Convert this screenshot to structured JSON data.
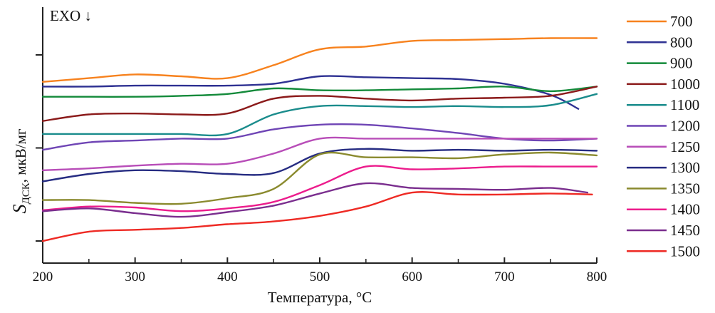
{
  "chart_data": {
    "type": "line",
    "title": "",
    "annotation": "EXO ↓",
    "xlabel": "Температура, °C",
    "ylabel_main": "S",
    "ylabel_sub": "ДСК",
    "ylabel_unit": ", мкВ/мг",
    "xlim": [
      200,
      800
    ],
    "ylim": [
      -0.24,
      2.55
    ],
    "x_ticks": [
      200,
      300,
      400,
      500,
      600,
      700,
      800
    ],
    "x_tick_labels": [
      "200",
      "300",
      "400",
      "500",
      "600",
      "700",
      "800"
    ],
    "x_minor_ticks": [
      250,
      350,
      450,
      550,
      650,
      750
    ],
    "y_ticks": [
      0,
      1,
      2
    ],
    "y_tick_labels": [
      "",
      "",
      ""
    ],
    "y_units_note": "arbitrary units (no numeric y tick labels shown)",
    "grid": false,
    "legend_position": "right",
    "x": [
      200,
      250,
      300,
      350,
      400,
      450,
      500,
      550,
      600,
      650,
      700,
      750,
      800
    ],
    "series": [
      {
        "name": "700",
        "color": "#F7821E",
        "values": [
          1.71,
          1.75,
          1.79,
          1.77,
          1.75,
          1.89,
          2.06,
          2.09,
          2.15,
          2.16,
          2.17,
          2.18,
          2.18
        ]
      },
      {
        "name": "800",
        "color": "#2E3192",
        "values": [
          1.66,
          1.66,
          1.67,
          1.67,
          1.67,
          1.69,
          1.77,
          1.76,
          1.75,
          1.74,
          1.69,
          1.57,
          1.42
        ],
        "x_end": 780
      },
      {
        "name": "900",
        "color": "#138A3A",
        "values": [
          1.55,
          1.55,
          1.55,
          1.56,
          1.58,
          1.64,
          1.62,
          1.62,
          1.63,
          1.64,
          1.66,
          1.61,
          1.66
        ]
      },
      {
        "name": "1000",
        "color": "#8B1A1A",
        "values": [
          1.29,
          1.36,
          1.37,
          1.36,
          1.37,
          1.53,
          1.56,
          1.53,
          1.51,
          1.53,
          1.54,
          1.56,
          1.66
        ]
      },
      {
        "name": "1100",
        "color": "#1A8C8C",
        "values": [
          1.15,
          1.15,
          1.15,
          1.15,
          1.15,
          1.36,
          1.45,
          1.45,
          1.44,
          1.45,
          1.44,
          1.46,
          1.58
        ]
      },
      {
        "name": "1200",
        "color": "#6F45B5",
        "values": [
          0.98,
          1.06,
          1.08,
          1.1,
          1.1,
          1.2,
          1.25,
          1.25,
          1.21,
          1.16,
          1.1,
          1.08,
          1.1
        ]
      },
      {
        "name": "1250",
        "color": "#B84DB8",
        "values": [
          0.76,
          0.78,
          0.81,
          0.83,
          0.83,
          0.94,
          1.1,
          1.1,
          1.1,
          1.1,
          1.1,
          1.1,
          1.1
        ]
      },
      {
        "name": "1300",
        "color": "#262C82",
        "values": [
          0.64,
          0.72,
          0.76,
          0.75,
          0.72,
          0.73,
          0.94,
          0.99,
          0.97,
          0.98,
          0.97,
          0.98,
          0.97
        ]
      },
      {
        "name": "1350",
        "color": "#8A8A2E",
        "values": [
          0.44,
          0.44,
          0.41,
          0.4,
          0.46,
          0.56,
          0.93,
          0.9,
          0.9,
          0.89,
          0.93,
          0.95,
          0.92
        ]
      },
      {
        "name": "1400",
        "color": "#EC1C8C",
        "values": [
          0.33,
          0.37,
          0.36,
          0.32,
          0.35,
          0.42,
          0.6,
          0.8,
          0.77,
          0.78,
          0.8,
          0.8,
          0.8
        ]
      },
      {
        "name": "1450",
        "color": "#7A2E8E",
        "values": [
          0.32,
          0.35,
          0.3,
          0.26,
          0.31,
          0.38,
          0.51,
          0.62,
          0.57,
          0.56,
          0.55,
          0.57,
          0.52
        ],
        "x_end": 790
      },
      {
        "name": "1500",
        "color": "#EE2A24",
        "values": [
          0.0,
          0.1,
          0.12,
          0.14,
          0.18,
          0.21,
          0.27,
          0.37,
          0.52,
          0.5,
          0.5,
          0.51,
          0.5
        ],
        "x_end": 795
      }
    ]
  }
}
